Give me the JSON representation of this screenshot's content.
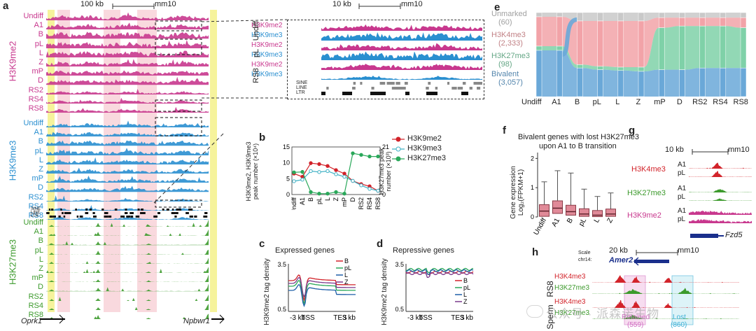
{
  "colors": {
    "h3k9me2": "#c8388e",
    "h3k9me3": "#2a8fd0",
    "h3k27me3": "#3c9a2c",
    "h3k4me3": "#d2232a",
    "yellow": "#f6f39c",
    "pink": "#f9d9de"
  },
  "panel_a": {
    "letter": "a",
    "scalebar": "100 kb",
    "assembly": "mm10",
    "marks": [
      "H3K9me2",
      "H3K9me3",
      "H3K27me3"
    ],
    "stages": [
      "Undiff",
      "A1",
      "B",
      "pL",
      "L",
      "Z",
      "mP",
      "D",
      "RS2",
      "RS4",
      "RS8"
    ],
    "annot": [
      "SINE",
      "LINE",
      "LTR"
    ],
    "genes": [
      "Oprk1",
      "Npbwr1"
    ]
  },
  "panel_zoom": {
    "scalebar": "10 kb",
    "assembly": "mm10",
    "groups": [
      "Undiff",
      "pL",
      "RS8"
    ],
    "tracks": [
      "H3K9me2",
      "H3K9me3"
    ],
    "annot": [
      "SINE",
      "LINE",
      "LTR"
    ]
  },
  "panel_b": {
    "letter": "b",
    "ylabel_left": "H3K9me2, H3K9me3 peak number (×10⁴)",
    "ylabel_right": "H3K27me3 peak number (×10³)",
    "left_ticks": [
      "0",
      "5",
      "10",
      "15"
    ],
    "right_ticks": [
      "0",
      "21"
    ],
    "chart_data": {
      "type": "line",
      "categories": [
        "Undiff",
        "A1",
        "B",
        "pL",
        "L",
        "Z",
        "mP",
        "D",
        "RS2",
        "RS4",
        "RS8"
      ],
      "ylim_left": [
        0,
        15
      ],
      "ylim_right": [
        0,
        21
      ],
      "series": [
        {
          "name": "H3K9me2",
          "axis": "left",
          "color": "#d2232a",
          "values": [
            6.6,
            5.6,
            9.9,
            9.6,
            9.0,
            7.7,
            6.6,
            4.3,
            3.3,
            2.6,
            1.2
          ]
        },
        {
          "name": "H3K9me3",
          "axis": "left",
          "color": "#3db0c4",
          "values": [
            4.2,
            4.7,
            7.4,
            7.1,
            7.4,
            6.4,
            5.6,
            4.3,
            2.9,
            1.8,
            1.2
          ]
        },
        {
          "name": "H3K27me3",
          "axis": "right",
          "color": "#2aa85a",
          "values": [
            9.8,
            10.0,
            1.1,
            0.4,
            0.4,
            1.1,
            0.4,
            18.2,
            17.5,
            16.8,
            16.8
          ]
        }
      ]
    }
  },
  "panel_c": {
    "letter": "c",
    "title": "Expressed genes",
    "ylabel": "H3K9me2 tag density",
    "yticks": [
      "3.5",
      "0.5"
    ],
    "xticks": [
      "-3 kb",
      "TSS",
      "TES",
      "3 kb"
    ],
    "legend": [
      "B",
      "pL",
      "L",
      "Z"
    ]
  },
  "panel_d": {
    "letter": "d",
    "title": "Repressive genes",
    "ylabel": "H3K9me2 tag density",
    "yticks": [
      "3.5",
      "0.5"
    ],
    "xticks": [
      "-3 kb",
      "TSS",
      "TES",
      "3 kb"
    ],
    "legend": [
      "B",
      "pL",
      "L",
      "Z"
    ]
  },
  "profile_colors": [
    "#d2232a",
    "#2aa85a",
    "#1f5fa8",
    "#7b3a8c"
  ],
  "panel_e": {
    "letter": "e",
    "states": [
      {
        "name": "Unmarked",
        "count": "(60)",
        "color": "#c9c9c9"
      },
      {
        "name": "H3K4me3",
        "count": "(2,333)",
        "color": "#f2a3a8"
      },
      {
        "name": "H3K27me3",
        "count": "(98)",
        "color": "#7fd1a8"
      },
      {
        "name": "Bivalent",
        "count": "(3,057)",
        "color": "#6aa8d8"
      }
    ],
    "stages": [
      "Undiff",
      "A1",
      "B",
      "pL",
      "L",
      "Z",
      "mP",
      "D",
      "RS2",
      "RS4",
      "RS8"
    ]
  },
  "panel_f": {
    "letter": "f",
    "title_1": "Bivalent genes with lost H3K27me3",
    "title_2": "upon A1 to B transition",
    "ylabel": "Gene expression Log₂(FPKM+1)",
    "yticks": [
      "0",
      "1",
      "2"
    ],
    "chart_data": {
      "type": "box",
      "categories": [
        "Undiff",
        "A1",
        "B",
        "pL",
        "L",
        "Z"
      ],
      "ylim": [
        0,
        2.2
      ],
      "boxes": [
        {
          "min": 0,
          "q1": 0.02,
          "median": 0.2,
          "q3": 0.42,
          "max": 1.2
        },
        {
          "min": 0,
          "q1": 0.12,
          "median": 0.3,
          "q3": 0.55,
          "max": 1.58
        },
        {
          "min": 0,
          "q1": 0.06,
          "median": 0.18,
          "q3": 0.4,
          "max": 1.5
        },
        {
          "min": 0,
          "q1": 0.02,
          "median": 0.1,
          "q3": 0.28,
          "max": 0.95
        },
        {
          "min": 0,
          "q1": 0.01,
          "median": 0.06,
          "q3": 0.22,
          "max": 0.7
        },
        {
          "min": 0,
          "q1": 0.02,
          "median": 0.1,
          "q3": 0.27,
          "max": 0.82
        }
      ]
    }
  },
  "panel_g": {
    "letter": "g",
    "scalebar": "10 kb",
    "assembly": "mm10",
    "tracks": [
      "H3K4me3",
      "H3K27me3",
      "H3K9me2"
    ],
    "stages": [
      "A1",
      "pL"
    ],
    "gene": "Fzd5"
  },
  "panel_h": {
    "letter": "h",
    "scale": "Scale",
    "chrom": "chr14:",
    "scalebar": "20 kb",
    "assembly": "mm10",
    "gene": "Amer2",
    "groups": [
      "RS8",
      "Sperm"
    ],
    "tracks": [
      "H3K4me3",
      "H3K27me3"
    ],
    "retained": "Retained",
    "retained_n": "(559)",
    "lost": "Lost",
    "lost_n": "(860)"
  },
  "watermark": "公众号 · 派森诺生物"
}
